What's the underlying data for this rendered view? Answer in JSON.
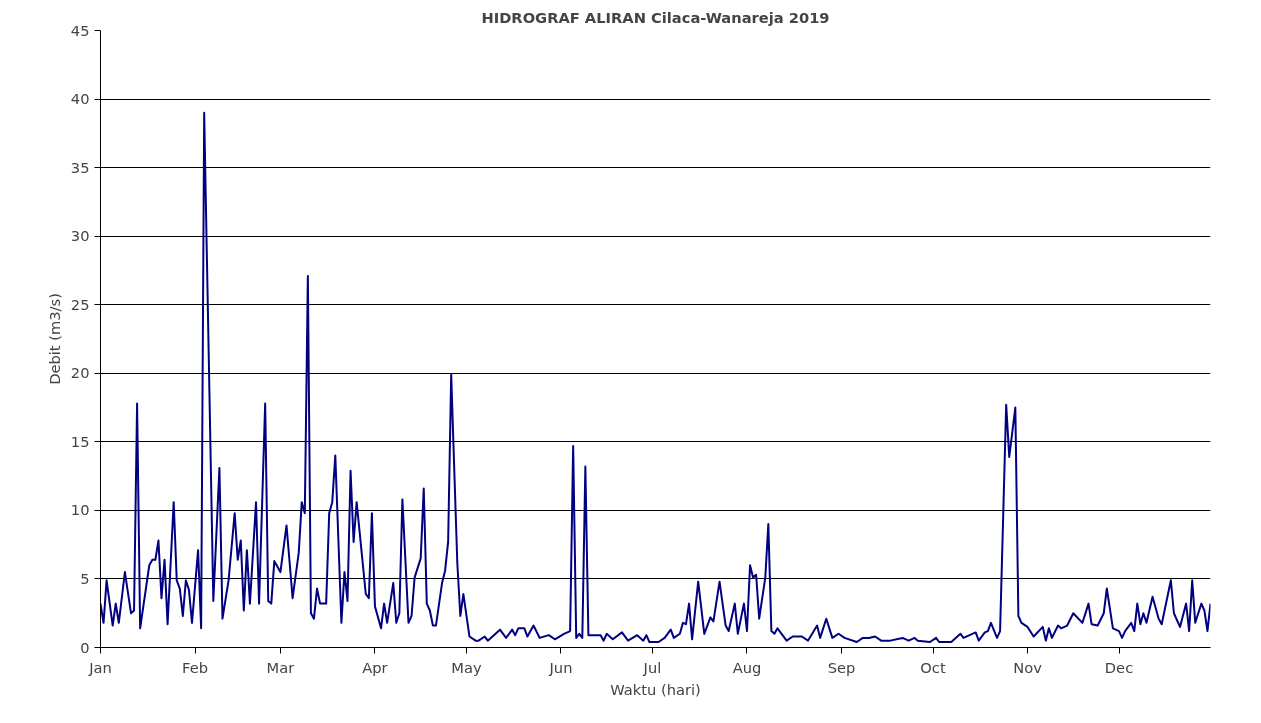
{
  "chart_data": {
    "type": "line",
    "title": "HIDROGRAF ALIRAN Cilaca-Wanareja 2019",
    "xlabel": "Waktu (hari)",
    "ylabel": "Debit (m3/s)",
    "xlim": [
      "2019-01-01",
      "2019-12-31"
    ],
    "xticks": [
      {
        "value": "2019-01-01",
        "label": "Jan"
      },
      {
        "value": "2019-02-01",
        "label": "Feb"
      },
      {
        "value": "2019-03-01",
        "label": "Mar"
      },
      {
        "value": "2019-04-01",
        "label": "Apr"
      },
      {
        "value": "2019-05-01",
        "label": "May"
      },
      {
        "value": "2019-06-01",
        "label": "Jun"
      },
      {
        "value": "2019-07-01",
        "label": "Jul"
      },
      {
        "value": "2019-08-01",
        "label": "Aug"
      },
      {
        "value": "2019-09-01",
        "label": "Sep"
      },
      {
        "value": "2019-10-01",
        "label": "Oct"
      },
      {
        "value": "2019-11-01",
        "label": "Nov"
      },
      {
        "value": "2019-12-01",
        "label": "Dec"
      }
    ],
    "ylim": [
      0,
      45
    ],
    "yticks": [
      0,
      5,
      10,
      15,
      20,
      25,
      30,
      35,
      40,
      45
    ],
    "grid": "y",
    "marker": "none",
    "line_style": "solid",
    "series": [
      {
        "color": "#000080",
        "x": [
          "2019-01-01",
          "2019-01-02",
          "2019-01-03",
          "2019-01-05",
          "2019-01-06",
          "2019-01-07",
          "2019-01-09",
          "2019-01-11",
          "2019-01-12",
          "2019-01-13",
          "2019-01-14",
          "2019-01-17",
          "2019-01-18",
          "2019-01-19",
          "2019-01-20",
          "2019-01-21",
          "2019-01-22",
          "2019-01-23",
          "2019-01-25",
          "2019-01-26",
          "2019-01-27",
          "2019-01-28",
          "2019-01-29",
          "2019-01-30",
          "2019-01-31",
          "2019-02-02",
          "2019-02-03",
          "2019-02-04",
          "2019-02-07",
          "2019-02-09",
          "2019-02-10",
          "2019-02-12",
          "2019-02-14",
          "2019-02-15",
          "2019-02-16",
          "2019-02-17",
          "2019-02-18",
          "2019-02-19",
          "2019-02-21",
          "2019-02-22",
          "2019-02-24",
          "2019-02-25",
          "2019-02-26",
          "2019-02-27",
          "2019-03-01",
          "2019-03-03",
          "2019-03-05",
          "2019-03-07",
          "2019-03-08",
          "2019-03-09",
          "2019-03-10",
          "2019-03-11",
          "2019-03-12",
          "2019-03-13",
          "2019-03-14",
          "2019-03-16",
          "2019-03-17",
          "2019-03-18",
          "2019-03-19",
          "2019-03-21",
          "2019-03-22",
          "2019-03-23",
          "2019-03-24",
          "2019-03-25",
          "2019-03-26",
          "2019-03-29",
          "2019-03-30",
          "2019-03-31",
          "2019-04-01",
          "2019-04-03",
          "2019-04-04",
          "2019-04-05",
          "2019-04-07",
          "2019-04-08",
          "2019-04-09",
          "2019-04-10",
          "2019-04-12",
          "2019-04-13",
          "2019-04-14",
          "2019-04-16",
          "2019-04-17",
          "2019-04-18",
          "2019-04-19",
          "2019-04-20",
          "2019-04-21",
          "2019-04-23",
          "2019-04-24",
          "2019-04-25",
          "2019-04-26",
          "2019-04-28",
          "2019-04-29",
          "2019-04-30",
          "2019-05-02",
          "2019-05-04",
          "2019-05-05",
          "2019-05-07",
          "2019-05-08",
          "2019-05-10",
          "2019-05-12",
          "2019-05-14",
          "2019-05-16",
          "2019-05-17",
          "2019-05-18",
          "2019-05-20",
          "2019-05-21",
          "2019-05-23",
          "2019-05-25",
          "2019-05-28",
          "2019-05-30",
          "2019-06-02",
          "2019-06-04",
          "2019-06-05",
          "2019-06-06",
          "2019-06-07",
          "2019-06-08",
          "2019-06-09",
          "2019-06-10",
          "2019-06-14",
          "2019-06-15",
          "2019-06-16",
          "2019-06-18",
          "2019-06-21",
          "2019-06-23",
          "2019-06-26",
          "2019-06-28",
          "2019-06-29",
          "2019-06-30",
          "2019-07-03",
          "2019-07-05",
          "2019-07-07",
          "2019-07-08",
          "2019-07-10",
          "2019-07-11",
          "2019-07-12",
          "2019-07-13",
          "2019-07-14",
          "2019-07-16",
          "2019-07-18",
          "2019-07-19",
          "2019-07-20",
          "2019-07-21",
          "2019-07-23",
          "2019-07-25",
          "2019-07-26",
          "2019-07-28",
          "2019-07-29",
          "2019-07-31",
          "2019-08-01",
          "2019-08-02",
          "2019-08-03",
          "2019-08-04",
          "2019-08-05",
          "2019-08-07",
          "2019-08-08",
          "2019-08-09",
          "2019-08-10",
          "2019-08-11",
          "2019-08-14",
          "2019-08-16",
          "2019-08-19",
          "2019-08-21",
          "2019-08-24",
          "2019-08-25",
          "2019-08-27",
          "2019-08-29",
          "2019-08-31",
          "2019-09-02",
          "2019-09-06",
          "2019-09-08",
          "2019-09-10",
          "2019-09-12",
          "2019-09-14",
          "2019-09-17",
          "2019-09-21",
          "2019-09-23",
          "2019-09-25",
          "2019-09-26",
          "2019-09-30",
          "2019-10-02",
          "2019-10-03",
          "2019-10-07",
          "2019-10-10",
          "2019-10-11",
          "2019-10-15",
          "2019-10-16",
          "2019-10-18",
          "2019-10-19",
          "2019-10-20",
          "2019-10-22",
          "2019-10-23",
          "2019-10-25",
          "2019-10-26",
          "2019-10-28",
          "2019-10-29",
          "2019-10-30",
          "2019-11-01",
          "2019-11-03",
          "2019-11-06",
          "2019-11-07",
          "2019-11-08",
          "2019-11-09",
          "2019-11-11",
          "2019-11-12",
          "2019-11-14",
          "2019-11-16",
          "2019-11-19",
          "2019-11-21",
          "2019-11-22",
          "2019-11-24",
          "2019-11-26",
          "2019-11-27",
          "2019-11-29",
          "2019-12-01",
          "2019-12-02",
          "2019-12-03",
          "2019-12-05",
          "2019-12-06",
          "2019-12-07",
          "2019-12-08",
          "2019-12-09",
          "2019-12-10",
          "2019-12-12",
          "2019-12-14",
          "2019-12-15",
          "2019-12-18",
          "2019-12-19",
          "2019-12-21",
          "2019-12-23",
          "2019-12-24",
          "2019-12-25",
          "2019-12-26",
          "2019-12-28",
          "2019-12-29",
          "2019-12-30",
          "2019-12-31"
        ],
        "values": [
          3.2,
          1.8,
          4.9,
          1.6,
          3.2,
          1.8,
          5.5,
          2.5,
          2.7,
          17.8,
          1.4,
          6.0,
          6.4,
          6.4,
          7.8,
          3.6,
          6.4,
          1.7,
          10.6,
          4.9,
          4.3,
          2.3,
          4.9,
          4.2,
          1.8,
          7.1,
          1.4,
          39.0,
          3.4,
          13.1,
          2.1,
          4.9,
          9.8,
          6.4,
          7.8,
          2.7,
          7.1,
          3.2,
          10.6,
          3.2,
          17.8,
          3.4,
          3.2,
          6.3,
          5.5,
          8.9,
          3.6,
          6.9,
          10.6,
          9.8,
          27.1,
          2.5,
          2.1,
          4.3,
          3.2,
          3.2,
          9.8,
          10.6,
          14.0,
          1.8,
          5.5,
          3.4,
          12.9,
          7.7,
          10.6,
          3.9,
          3.6,
          9.8,
          3.0,
          1.4,
          3.2,
          1.8,
          4.7,
          1.8,
          2.5,
          10.8,
          1.8,
          2.3,
          5.1,
          6.5,
          11.6,
          3.2,
          2.7,
          1.6,
          1.6,
          4.7,
          5.6,
          7.7,
          19.9,
          6.2,
          2.3,
          3.9,
          0.8,
          0.5,
          0.5,
          0.8,
          0.5,
          0.9,
          1.3,
          0.7,
          1.3,
          0.9,
          1.4,
          1.4,
          0.8,
          1.6,
          0.7,
          0.9,
          0.6,
          1.0,
          1.2,
          14.7,
          0.7,
          1.0,
          0.7,
          13.2,
          0.9,
          0.9,
          0.5,
          1.0,
          0.6,
          1.1,
          0.5,
          0.9,
          0.5,
          0.9,
          0.4,
          0.4,
          0.7,
          1.3,
          0.7,
          1.0,
          1.8,
          1.7,
          3.2,
          0.6,
          4.8,
          1.0,
          1.6,
          2.2,
          1.9,
          4.8,
          1.6,
          1.2,
          3.2,
          1.0,
          3.2,
          1.2,
          6.0,
          5.1,
          5.3,
          2.1,
          5.1,
          9.0,
          1.2,
          1.0,
          1.4,
          0.5,
          0.8,
          0.8,
          0.5,
          1.6,
          0.7,
          2.1,
          0.7,
          1.0,
          0.7,
          0.4,
          0.7,
          0.7,
          0.8,
          0.5,
          0.5,
          0.7,
          0.5,
          0.7,
          0.5,
          0.4,
          0.7,
          0.4,
          0.4,
          1.0,
          0.7,
          1.1,
          0.5,
          1.1,
          1.2,
          1.8,
          0.7,
          1.2,
          17.7,
          13.9,
          17.5,
          2.3,
          1.8,
          1.5,
          0.8,
          1.5,
          0.5,
          1.4,
          0.7,
          1.6,
          1.4,
          1.6,
          2.5,
          1.8,
          3.2,
          1.7,
          1.6,
          2.5,
          4.3,
          1.4,
          1.2,
          0.7,
          1.2,
          1.8,
          1.2,
          3.2,
          1.7,
          2.5,
          1.8,
          3.7,
          2.1,
          1.7,
          4.9,
          2.5,
          1.5,
          3.2,
          1.2,
          4.9,
          1.8,
          3.2,
          2.7,
          1.2,
          3.2
        ]
      }
    ]
  }
}
